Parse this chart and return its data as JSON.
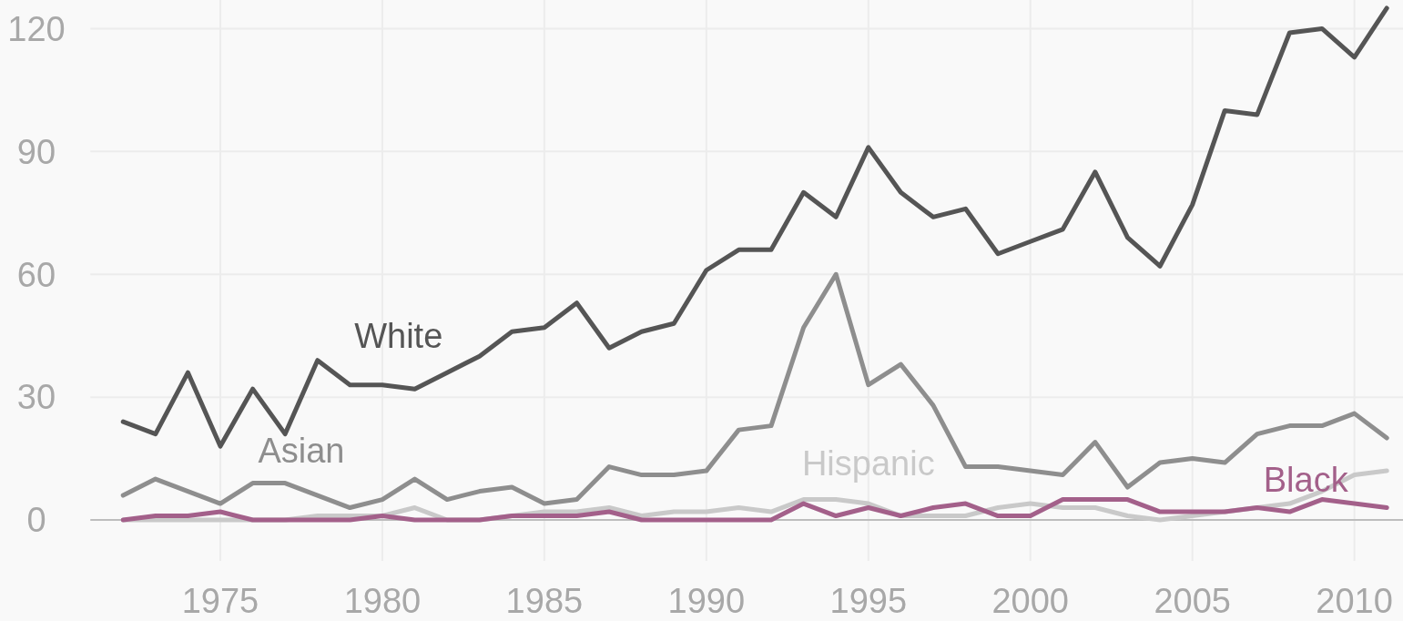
{
  "chart_data": {
    "type": "line",
    "x": [
      1972,
      1973,
      1974,
      1975,
      1976,
      1977,
      1978,
      1979,
      1980,
      1981,
      1982,
      1983,
      1984,
      1985,
      1986,
      1987,
      1988,
      1989,
      1990,
      1991,
      1992,
      1993,
      1994,
      1995,
      1996,
      1997,
      1998,
      1999,
      2000,
      2001,
      2002,
      2003,
      2004,
      2005,
      2006,
      2007,
      2008,
      2009,
      2010,
      2011
    ],
    "series": [
      {
        "name": "White",
        "color": "#555555",
        "values": [
          24,
          21,
          36,
          18,
          32,
          21,
          39,
          33,
          33,
          32,
          36,
          40,
          46,
          47,
          53,
          42,
          46,
          48,
          61,
          66,
          66,
          80,
          74,
          91,
          80,
          74,
          76,
          65,
          68,
          71,
          85,
          69,
          62,
          77,
          100,
          99,
          119,
          120,
          113,
          125
        ]
      },
      {
        "name": "Asian",
        "color": "#8e8e8e",
        "values": [
          6,
          10,
          7,
          4,
          9,
          9,
          6,
          3,
          5,
          10,
          5,
          7,
          8,
          4,
          5,
          13,
          11,
          11,
          12,
          22,
          23,
          47,
          60,
          33,
          38,
          28,
          13,
          13,
          12,
          11,
          19,
          8,
          14,
          15,
          14,
          21,
          23,
          23,
          26,
          20
        ]
      },
      {
        "name": "Hispanic",
        "color": "#c9c9c9",
        "values": [
          0,
          0,
          0,
          0,
          0,
          0,
          1,
          1,
          1,
          3,
          0,
          0,
          1,
          2,
          2,
          3,
          1,
          2,
          2,
          3,
          2,
          5,
          5,
          4,
          1,
          1,
          1,
          3,
          4,
          3,
          3,
          1,
          0,
          1,
          2,
          3,
          4,
          7,
          11,
          12
        ]
      },
      {
        "name": "Black",
        "color": "#a3608a",
        "values": [
          0,
          1,
          1,
          2,
          0,
          0,
          0,
          0,
          1,
          0,
          0,
          0,
          1,
          1,
          1,
          2,
          0,
          0,
          0,
          0,
          0,
          4,
          1,
          3,
          1,
          3,
          4,
          1,
          1,
          5,
          5,
          5,
          2,
          2,
          2,
          3,
          2,
          5,
          4,
          3
        ]
      }
    ],
    "xlim": [
      1968.2,
      2011.5
    ],
    "ylim": [
      -10,
      127
    ],
    "xticks": [
      1975,
      1980,
      1985,
      1990,
      1995,
      2000,
      2005,
      2010
    ],
    "yticks": [
      0,
      30,
      60,
      90,
      120
    ],
    "grid": true,
    "legend": false,
    "marker": "none",
    "line_style": "solid"
  }
}
